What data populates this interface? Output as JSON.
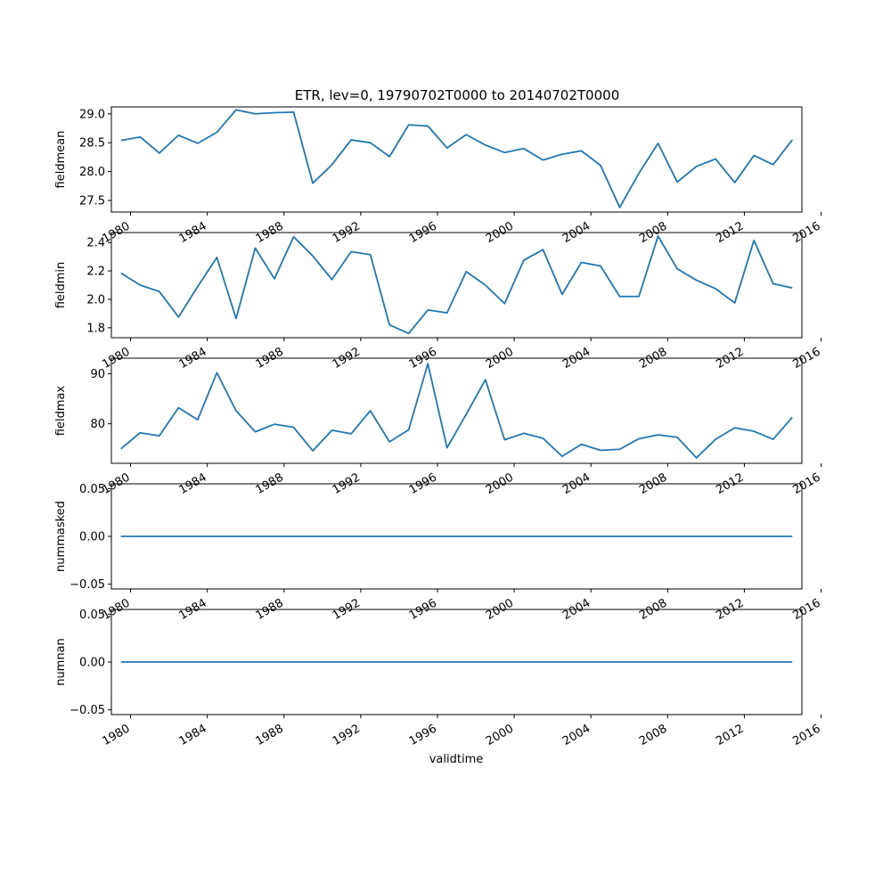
{
  "title": "ETR, lev=0, 19790702T0000 to 20140702T0000",
  "xlabel": "validtime",
  "line_color": "#1f77b4",
  "x_ticks": [
    "1980",
    "1984",
    "1988",
    "1992",
    "1996",
    "2000",
    "2004",
    "2008",
    "2012",
    "2016"
  ],
  "chart_data": [
    {
      "type": "line",
      "ylabel": "fieldmean",
      "xlim": [
        1979.0,
        2015.0
      ],
      "ylim": [
        27.3,
        29.12
      ],
      "y_ticks": [
        "27.5",
        "28.0",
        "28.5",
        "29.0"
      ],
      "y_tick_values": [
        27.5,
        28.0,
        28.5,
        29.0
      ],
      "x": [
        1979.5,
        1980.5,
        1981.5,
        1982.5,
        1983.5,
        1984.5,
        1985.5,
        1986.5,
        1987.5,
        1988.5,
        1989.5,
        1990.5,
        1991.5,
        1992.5,
        1993.5,
        1994.5,
        1995.5,
        1996.5,
        1997.5,
        1998.5,
        1999.5,
        2000.5,
        2001.5,
        2002.5,
        2003.5,
        2004.5,
        2005.5,
        2006.5,
        2007.5,
        2008.5,
        2009.5,
        2010.5,
        2011.5,
        2012.5,
        2013.5,
        2014.5
      ],
      "values": [
        28.54,
        28.6,
        28.32,
        28.63,
        28.49,
        28.68,
        29.07,
        29.0,
        29.02,
        29.03,
        27.8,
        28.12,
        28.55,
        28.5,
        28.26,
        28.81,
        28.79,
        28.41,
        28.64,
        28.46,
        28.33,
        28.4,
        28.2,
        28.3,
        28.36,
        28.11,
        27.38,
        27.97,
        28.49,
        27.82,
        28.09,
        28.22,
        27.81,
        28.28,
        28.12,
        28.55
      ]
    },
    {
      "type": "line",
      "ylabel": "fieldmin",
      "xlim": [
        1979.0,
        2015.0
      ],
      "ylim": [
        1.73,
        2.47
      ],
      "y_ticks": [
        "1.8",
        "2.0",
        "2.2",
        "2.4"
      ],
      "y_tick_values": [
        1.8,
        2.0,
        2.2,
        2.4
      ],
      "x": [
        1979.5,
        1980.5,
        1981.5,
        1982.5,
        1983.5,
        1984.5,
        1985.5,
        1986.5,
        1987.5,
        1988.5,
        1989.5,
        1990.5,
        1991.5,
        1992.5,
        1993.5,
        1994.5,
        1995.5,
        1996.5,
        1997.5,
        1998.5,
        1999.5,
        2000.5,
        2001.5,
        2002.5,
        2003.5,
        2004.5,
        2005.5,
        2006.5,
        2007.5,
        2008.5,
        2009.5,
        2010.5,
        2011.5,
        2012.5,
        2013.5,
        2014.5
      ],
      "values": [
        2.185,
        2.1,
        2.055,
        1.875,
        2.09,
        2.295,
        1.865,
        2.36,
        2.145,
        2.44,
        2.305,
        2.14,
        2.335,
        2.315,
        1.82,
        1.76,
        1.925,
        1.905,
        2.195,
        2.1,
        1.97,
        2.275,
        2.35,
        2.035,
        2.26,
        2.235,
        2.02,
        2.02,
        2.445,
        2.215,
        2.135,
        2.075,
        1.975,
        2.415,
        2.11,
        2.08
      ]
    },
    {
      "type": "line",
      "ylabel": "fieldmax",
      "xlim": [
        1979.0,
        2015.0
      ],
      "ylim": [
        72.1,
        93.1
      ],
      "y_ticks": [
        "80",
        "90"
      ],
      "y_tick_values": [
        80,
        90
      ],
      "x": [
        1979.5,
        1980.5,
        1981.5,
        1982.5,
        1983.5,
        1984.5,
        1985.5,
        1986.5,
        1987.5,
        1988.5,
        1989.5,
        1990.5,
        1991.5,
        1992.5,
        1993.5,
        1994.5,
        1995.5,
        1996.5,
        1997.5,
        1998.5,
        1999.5,
        2000.5,
        2001.5,
        2002.5,
        2003.5,
        2004.5,
        2005.5,
        2006.5,
        2007.5,
        2008.5,
        2009.5,
        2010.5,
        2011.5,
        2012.5,
        2013.5,
        2014.5
      ],
      "values": [
        75.0,
        78.2,
        77.6,
        83.2,
        80.8,
        90.2,
        82.6,
        78.4,
        79.9,
        79.3,
        74.6,
        78.7,
        78.0,
        82.6,
        76.4,
        78.8,
        92.0,
        75.2,
        81.9,
        88.8,
        76.8,
        78.1,
        77.1,
        73.5,
        75.9,
        74.7,
        74.9,
        77.0,
        77.8,
        77.3,
        73.2,
        76.9,
        79.2,
        78.5,
        76.9,
        81.3
      ]
    },
    {
      "type": "line",
      "ylabel": "nummasked",
      "xlim": [
        1979.0,
        2015.0
      ],
      "ylim": [
        -0.055,
        0.055
      ],
      "y_ticks": [
        "0.05",
        "0.00",
        "−0.05"
      ],
      "y_tick_values": [
        0.05,
        0.0,
        -0.05
      ],
      "x": [
        1979.5,
        2014.5
      ],
      "values": [
        0.0,
        0.0
      ]
    },
    {
      "type": "line",
      "ylabel": "numnan",
      "xlim": [
        1979.0,
        2015.0
      ],
      "ylim": [
        -0.055,
        0.055
      ],
      "y_ticks": [
        "0.05",
        "0.00",
        "−0.05"
      ],
      "y_tick_values": [
        0.05,
        0.0,
        -0.05
      ],
      "x": [
        1979.5,
        2014.5
      ],
      "values": [
        0.0,
        0.0
      ]
    }
  ]
}
